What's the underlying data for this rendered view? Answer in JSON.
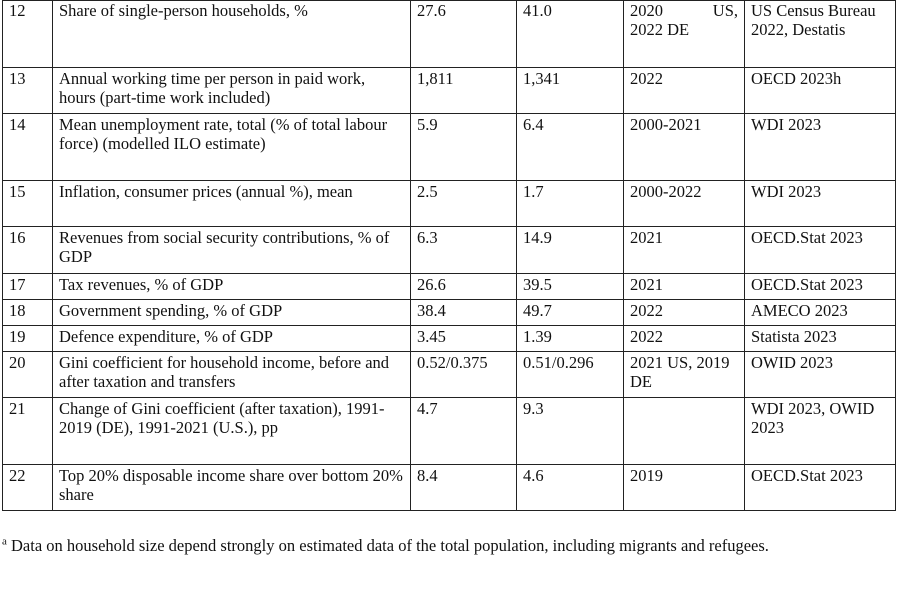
{
  "table": {
    "rows": [
      {
        "no": "12",
        "indicator": "Share of single-person households, %",
        "us": "27.6",
        "de": "41.0",
        "year_a": "2020",
        "year_b": "US,",
        "year_c": "2022 DE",
        "source": "US Census Bureau 2022, Destatis"
      },
      {
        "no": "13",
        "indicator": "Annual working time per person in paid work, hours (part-time work included)",
        "us": "1,811",
        "de": "1,341",
        "year": "2022",
        "source": "OECD 2023h"
      },
      {
        "no": "14",
        "indicator": "Mean unemployment rate, total (% of total labour force) (modelled ILO estimate)",
        "us": "5.9",
        "de": "6.4",
        "year": "2000-2021",
        "source": "WDI 2023"
      },
      {
        "no": "15",
        "indicator": "Inflation, consumer prices (annual %), mean",
        "us": "2.5",
        "de": "1.7",
        "year": "2000-2022",
        "source": "WDI 2023"
      },
      {
        "no": "16",
        "indicator": "Revenues from social security contributions, % of GDP",
        "us": "6.3",
        "de": "14.9",
        "year": "2021",
        "source": "OECD.Stat 2023"
      },
      {
        "no": "17",
        "indicator": "Tax revenues, % of GDP",
        "us": "26.6",
        "de": "39.5",
        "year": "2021",
        "source": "OECD.Stat 2023"
      },
      {
        "no": "18",
        "indicator": "Government spending, % of GDP",
        "us": "38.4",
        "de": "49.7",
        "year": "2022",
        "source": "AMECO 2023"
      },
      {
        "no": "19",
        "indicator": "Defence expenditure, % of GDP",
        "us": "3.45",
        "de": "1.39",
        "year": "2022",
        "source": "Statista 2023"
      },
      {
        "no": "20",
        "indicator": "Gini coefficient for household income, before and after taxation and transfers",
        "us": "0.52/0.375",
        "de": "0.51/0.296",
        "year": "2021 US, 2019 DE",
        "source": "OWID 2023"
      },
      {
        "no": "21",
        "indicator": "Change of Gini coefficient (after taxation), 1991-2019 (DE), 1991-2021 (U.S.), pp",
        "us": "4.7",
        "de": "9.3",
        "year": "",
        "source": "WDI 2023, OWID 2023"
      },
      {
        "no": "22",
        "indicator": "Top 20% disposable income share over bottom 20% share",
        "us": "8.4",
        "de": "4.6",
        "year": "2019",
        "source": "OECD.Stat 2023"
      }
    ]
  },
  "footnote": {
    "marker": "a",
    "text": "Data on household size depend strongly on estimated data of the total population, including migrants and refugees."
  }
}
